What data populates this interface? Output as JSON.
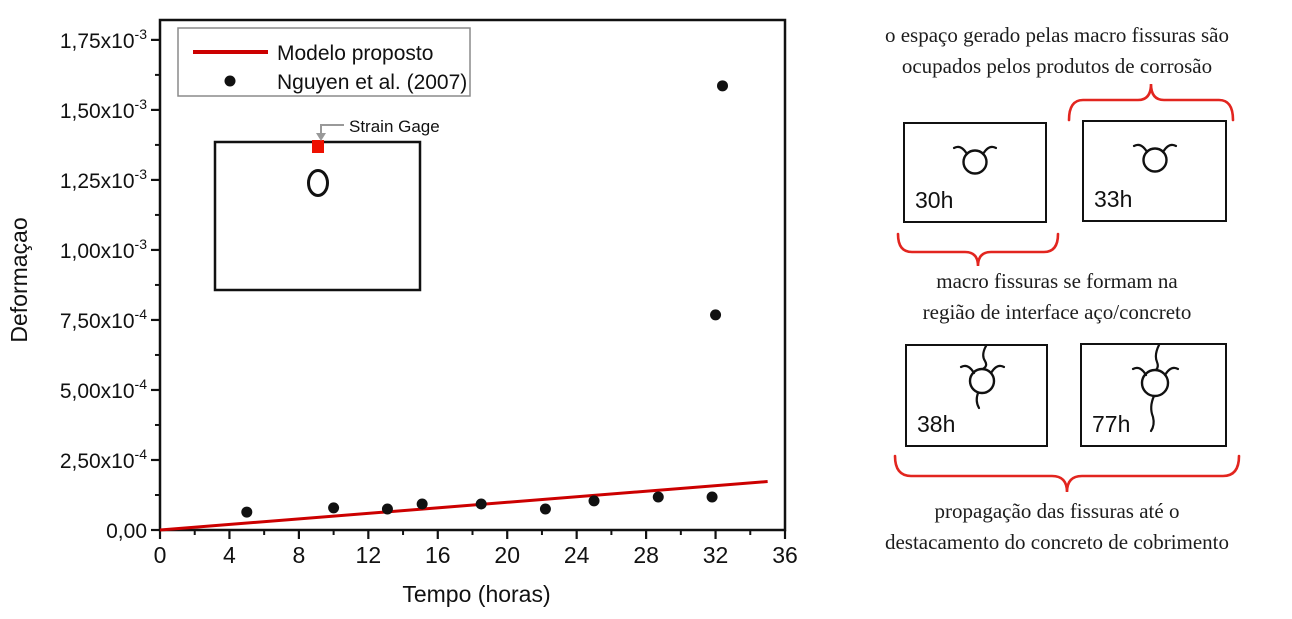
{
  "chart": {
    "legend": [
      {
        "type": "line",
        "label": "Modelo proposto",
        "color": "#cc0000"
      },
      {
        "type": "dot",
        "label": "Nguyen et al. (2007)",
        "color": "#111111"
      }
    ],
    "inset": {
      "label": "Strain Gage",
      "gage_color": "#ee1000"
    },
    "chart_data": {
      "type": "scatter",
      "title": "",
      "xlabel": "Tempo (horas)",
      "ylabel": "Deformaçao",
      "xlim": [
        0,
        36
      ],
      "ylim": [
        0,
        0.001821
      ],
      "grid": false,
      "legend_position": "top-left",
      "x_ticks": [
        0,
        4,
        8,
        12,
        16,
        20,
        24,
        28,
        32,
        36
      ],
      "y_ticks": [
        {
          "value": 0.00175,
          "label": "1,75x10^-3"
        },
        {
          "value": 0.0015,
          "label": "1,50x10^-3"
        },
        {
          "value": 0.00125,
          "label": "1,25x10^-3"
        },
        {
          "value": 0.001,
          "label": "1,00x10^-3"
        },
        {
          "value": 0.00075,
          "label": "7,50x10^-4"
        },
        {
          "value": 0.0005,
          "label": "5,00x10^-4"
        },
        {
          "value": 0.00025,
          "label": "2,50x10^-4"
        },
        {
          "value": 0.0,
          "label": "0,00"
        }
      ],
      "series": [
        {
          "name": "Modelo proposto",
          "type": "line",
          "color": "#cc0000",
          "points": [
            [
              0,
              0
            ],
            [
              35,
              0.000173
            ]
          ]
        },
        {
          "name": "Nguyen et al. (2007)",
          "type": "scatter",
          "color": "#111111",
          "points": [
            [
              5.0,
              6.4e-05
            ],
            [
              10.0,
              7.9e-05
            ],
            [
              13.1,
              7.5e-05
            ],
            [
              15.1,
              9.3e-05
            ],
            [
              18.5,
              9.3e-05
            ],
            [
              22.2,
              7.5e-05
            ],
            [
              25.0,
              0.000104
            ],
            [
              28.7,
              0.000118
            ],
            [
              31.8,
              0.000118
            ],
            [
              32.0,
              0.000768
            ],
            [
              32.4,
              0.001586
            ]
          ]
        }
      ]
    }
  },
  "panel": {
    "accent_color": "#e2251f",
    "caption_top": [
      "o espaço gerado pelas macro fissuras são",
      "ocupados pelos produtos de corrosão"
    ],
    "boxes_row1": [
      {
        "label": "30h"
      },
      {
        "label": "33h"
      }
    ],
    "caption_mid": [
      "macro fissuras se formam na",
      "região de interface aço/concreto"
    ],
    "boxes_row2": [
      {
        "label": "38h"
      },
      {
        "label": "77h"
      }
    ],
    "caption_bottom": [
      "propagação das fissuras até o",
      "destacamento do concreto de cobrimento"
    ]
  }
}
